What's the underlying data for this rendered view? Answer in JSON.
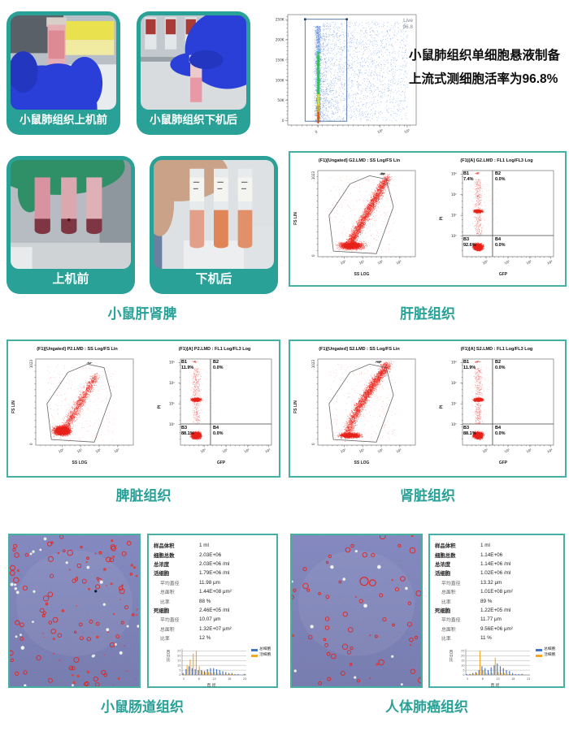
{
  "colors": {
    "teal": "#2aa197",
    "panel_border": "#45b0a3",
    "scatter_red": "#e8231b",
    "bar_blue": "#4472c4",
    "bar_orange": "#f5a623",
    "micro_bg": "#7e83b6"
  },
  "row1": {
    "photo_before_label": "小鼠肺组织上机前",
    "photo_after_label": "小鼠肺组织下机后",
    "annotation_line1": "小鼠肺组织单细胞悬液制备",
    "annotation_line2": "上流式测细胞活率为96.8%"
  },
  "row2": {
    "photo_before_label": "上机前",
    "photo_after_label": "下机后",
    "photos_caption": "小鼠肝肾脾",
    "panel_caption": "肝脏组织"
  },
  "row3": {
    "left_caption": "脾脏组织",
    "right_caption": "肾脏组织"
  },
  "row4": {
    "left_caption": "小鼠肠道组织",
    "right_caption": "人体肺癌组织",
    "intestine_stats": [
      {
        "label": "样品体积",
        "value": "1 ml",
        "indent": false
      },
      {
        "label": "细胞总数",
        "value": "2.03E+06",
        "indent": false
      },
      {
        "label": "总浓度",
        "value": "2.03E+06 /ml",
        "indent": false
      },
      {
        "label": "活细胞",
        "value": "1.79E+06 /ml",
        "indent": false
      },
      {
        "label": "平均直径",
        "value": "11.98 μm",
        "indent": true
      },
      {
        "label": "总面积",
        "value": "1.44E+08 μm²",
        "indent": true
      },
      {
        "label": "比率",
        "value": "88 %",
        "indent": true
      },
      {
        "label": "死细胞",
        "value": "2.46E+05 /ml",
        "indent": false
      },
      {
        "label": "平均直径",
        "value": "10.07 μm",
        "indent": true
      },
      {
        "label": "总面积",
        "value": "1.32E+07 μm²",
        "indent": true
      },
      {
        "label": "比率",
        "value": "12 %",
        "indent": true
      }
    ],
    "lung_stats": [
      {
        "label": "样品体积",
        "value": "1 ml",
        "indent": false
      },
      {
        "label": "细胞总数",
        "value": "1.14E+06",
        "indent": false
      },
      {
        "label": "总浓度",
        "value": "1.14E+06 /ml",
        "indent": false
      },
      {
        "label": "活细胞",
        "value": "1.02E+06 /ml",
        "indent": false
      },
      {
        "label": "平均直径",
        "value": "13.32 μm",
        "indent": true
      },
      {
        "label": "总面积",
        "value": "1.01E+08 μm²",
        "indent": true
      },
      {
        "label": "比率",
        "value": "89 %",
        "indent": true
      },
      {
        "label": "死细胞",
        "value": "1.22E+05 /ml",
        "indent": false
      },
      {
        "label": "平均直径",
        "value": "11.77 μm",
        "indent": true
      },
      {
        "label": "总面积",
        "value": "9.56E+06 μm²",
        "indent": true
      },
      {
        "label": "比率",
        "value": "11 %",
        "indent": true
      }
    ]
  },
  "chart_data": {
    "live_scatter": {
      "type": "scatter",
      "gate_label": "Live",
      "gate_value": "96.8",
      "x_ticks": [
        "0",
        "10⁴",
        "10⁵"
      ],
      "y_ticks": [
        "250K",
        "200K",
        "150K",
        "100K",
        "50K",
        "0"
      ],
      "description": "Viability dot plot: dense rainbow-density viable column near x=0 inside rectangular Live gate (96.8%), sparse blue debris cloud to the right"
    },
    "liver_fs_ss": {
      "type": "scatter",
      "title": "(F1)[Ungated] G2.LMD : SS Log/FS Lin",
      "xlabel": "SS LOG",
      "ylabel": "FS LIN",
      "x_ticks": [
        "10⁰",
        "10¹",
        "10²",
        "10³"
      ],
      "y_ticks": [
        "1023",
        "0"
      ],
      "variant": "liver",
      "seed": 7
    },
    "liver_quad": {
      "type": "scatter",
      "title": "(F1)[A] G2.LMD : FL1 Log/FL3 Log",
      "xlabel": "GFP",
      "ylabel": "PI",
      "x_ticks": [
        "10⁰",
        "10¹",
        "10²",
        "10³"
      ],
      "y_ticks": [
        "10³",
        "10²",
        "10¹",
        "10⁰"
      ],
      "seed": 9,
      "quadrants": [
        {
          "name": "B1",
          "value": "7.4%"
        },
        {
          "name": "B2",
          "value": "0.0%"
        },
        {
          "name": "B3",
          "value": "92.6%"
        },
        {
          "name": "B4",
          "value": "0.0%"
        }
      ]
    },
    "spleen_fs_ss": {
      "type": "scatter",
      "title": "(F1)[Ungated] P2.LMD : SS Log/FS Lin",
      "xlabel": "SS LOG",
      "ylabel": "FS LIN",
      "x_ticks": [
        "10⁰",
        "10¹",
        "10²",
        "10³"
      ],
      "y_ticks": [
        "1023",
        "0"
      ],
      "variant": "spleen",
      "seed": 13
    },
    "spleen_quad": {
      "type": "scatter",
      "title": "(F1)[A] P2.LMD : FL1 Log/FL3 Log",
      "xlabel": "GFP",
      "ylabel": "PI",
      "x_ticks": [
        "10⁰",
        "10¹",
        "10²",
        "10³"
      ],
      "y_ticks": [
        "10³",
        "10²",
        "10¹",
        "10⁰"
      ],
      "seed": 15,
      "quadrants": [
        {
          "name": "B1",
          "value": "11.9%"
        },
        {
          "name": "B2",
          "value": "0.0%"
        },
        {
          "name": "B3",
          "value": "88.1%"
        },
        {
          "name": "B4",
          "value": "0.0%"
        }
      ]
    },
    "kidney_fs_ss": {
      "type": "scatter",
      "title": "(F1)[Ungated] S2.LMD : SS Log/FS Lin",
      "xlabel": "SS LOG",
      "ylabel": "FS LIN",
      "x_ticks": [
        "10⁰",
        "10¹",
        "10²",
        "10³"
      ],
      "y_ticks": [
        "1023",
        "0"
      ],
      "variant": "kidney",
      "seed": 21
    },
    "kidney_quad": {
      "type": "scatter",
      "title": "(F1)[A] S2.LMD : FL1 Log/FL3 Log",
      "xlabel": "GFP",
      "ylabel": "PI",
      "x_ticks": [
        "10⁰",
        "10¹",
        "10²",
        "10³"
      ],
      "y_ticks": [
        "10³",
        "10²",
        "10¹",
        "10⁰"
      ],
      "seed": 23,
      "quadrants": [
        {
          "name": "B1",
          "value": "11.9%"
        },
        {
          "name": "B2",
          "value": "0.0%"
        },
        {
          "name": "B3",
          "value": "88.1%"
        },
        {
          "name": "B4",
          "value": "0.0%"
        }
      ]
    },
    "intestine_hist": {
      "type": "bar",
      "categories": [
        3,
        4,
        5,
        6,
        7,
        8,
        9,
        10,
        11,
        12,
        13,
        14,
        15,
        16,
        17,
        18,
        19,
        20,
        21,
        22,
        23
      ],
      "series": [
        {
          "name": "总细胞",
          "color": "#4472c4",
          "values": [
            2,
            6,
            9,
            7,
            6,
            5,
            5,
            4,
            6,
            7,
            7,
            6,
            5,
            4,
            3,
            2,
            2,
            1,
            1,
            0,
            1
          ]
        },
        {
          "name": "活细胞",
          "color": "#f5a623",
          "values": [
            1,
            10,
            16,
            22,
            25,
            9,
            4,
            3,
            3,
            2,
            3,
            2,
            2,
            1,
            1,
            1,
            1,
            0,
            0,
            0,
            1
          ]
        }
      ],
      "xlabel": "直 径",
      "ylabel": "百分比",
      "y_ticks": [
        0,
        5,
        10,
        15,
        20,
        25
      ],
      "ylim": [
        0,
        25
      ]
    },
    "lung_hist": {
      "type": "bar",
      "categories": [
        3,
        4,
        5,
        6,
        7,
        8,
        9,
        10,
        11,
        12,
        13,
        14,
        15,
        16,
        17,
        18,
        19,
        20,
        21,
        22,
        23
      ],
      "series": [
        {
          "name": "总细胞",
          "color": "#4472c4",
          "values": [
            1,
            1,
            2,
            3,
            5,
            9,
            7,
            5,
            8,
            10,
            12,
            9,
            7,
            5,
            4,
            2,
            1,
            1,
            1,
            0,
            0
          ]
        },
        {
          "name": "活细胞",
          "color": "#f5a623",
          "values": [
            0,
            1,
            1,
            2,
            25,
            5,
            2,
            2,
            2,
            18,
            3,
            2,
            2,
            1,
            1,
            1,
            0,
            0,
            1,
            0,
            0
          ]
        }
      ],
      "xlabel": "直 径",
      "ylabel": "百分比",
      "y_ticks": [
        0,
        5,
        10,
        15,
        20,
        25
      ],
      "ylim": [
        0,
        25
      ]
    }
  }
}
